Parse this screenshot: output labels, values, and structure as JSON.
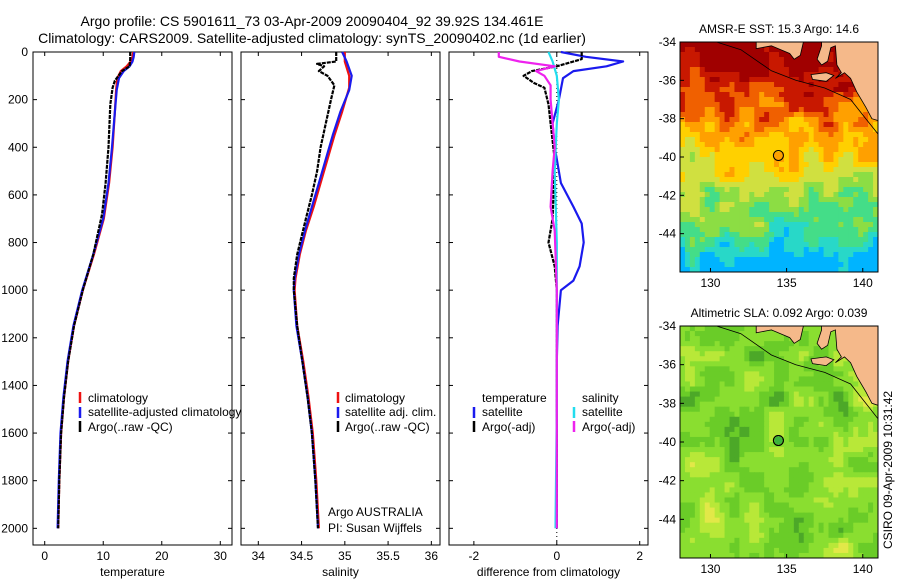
{
  "figure": {
    "title_line1": "Argo profile: CS 5901611_73 03-Apr-2009 20090404_92 39.92S 134.461E",
    "title_line2": "Climatology: CARS2009. Satellite-adjusted climatology: synTS_20090402.nc (1d earlier)",
    "credit": "CSIRO 09-Apr-2009 10:31:42"
  },
  "colors": {
    "climatology": "#ee1111",
    "satellite": "#1a1aee",
    "argo": "#000000",
    "salinity_satellite": "#22ddee",
    "salinity_argo": "#ee22ee",
    "land": "#f5b98a"
  },
  "chart_data": [
    {
      "id": "temperature",
      "type": "line",
      "xlabel": "temperature",
      "ylabel": "",
      "xlim": [
        -2,
        32
      ],
      "ylim": [
        2070,
        0
      ],
      "xticks": [
        0,
        10,
        20,
        30
      ],
      "yticks": [
        0,
        200,
        400,
        600,
        800,
        1000,
        1200,
        1400,
        1600,
        1800,
        2000
      ],
      "legend": [
        "climatology",
        "satellite-adjusted climatology",
        "Argo(..raw -QC)"
      ],
      "series": [
        {
          "name": "climatology",
          "color_key": "climatology",
          "points": [
            [
              15.1,
              0
            ],
            [
              15.0,
              20
            ],
            [
              14.7,
              40
            ],
            [
              14.0,
              60
            ],
            [
              13.0,
              80
            ],
            [
              12.4,
              110
            ],
            [
              12.2,
              160
            ],
            [
              12.0,
              250
            ],
            [
              11.6,
              400
            ],
            [
              11.0,
              550
            ],
            [
              10.1,
              700
            ],
            [
              8.4,
              850
            ],
            [
              6.5,
              1000
            ],
            [
              5.0,
              1150
            ],
            [
              4.0,
              1300
            ],
            [
              3.3,
              1450
            ],
            [
              2.8,
              1600
            ],
            [
              2.5,
              1800
            ],
            [
              2.3,
              2000
            ]
          ]
        },
        {
          "name": "satellite-adjusted climatology",
          "color_key": "satellite",
          "points": [
            [
              15.3,
              0
            ],
            [
              15.2,
              20
            ],
            [
              15.0,
              40
            ],
            [
              14.5,
              60
            ],
            [
              13.5,
              80
            ],
            [
              12.7,
              110
            ],
            [
              12.3,
              160
            ],
            [
              12.0,
              250
            ],
            [
              11.5,
              400
            ],
            [
              10.9,
              550
            ],
            [
              10.0,
              700
            ],
            [
              8.3,
              850
            ],
            [
              6.4,
              1000
            ],
            [
              4.9,
              1150
            ],
            [
              3.9,
              1300
            ],
            [
              3.2,
              1450
            ],
            [
              2.7,
              1600
            ],
            [
              2.4,
              1800
            ],
            [
              2.2,
              2000
            ]
          ]
        },
        {
          "name": "Argo(..raw -QC)",
          "color_key": "argo",
          "points": [
            [
              14.6,
              0
            ],
            [
              14.6,
              30
            ],
            [
              14.5,
              60
            ],
            [
              13.2,
              80
            ],
            [
              12.6,
              100
            ],
            [
              12.0,
              120
            ],
            [
              11.6,
              150
            ],
            [
              11.2,
              220
            ],
            [
              10.9,
              400
            ],
            [
              10.4,
              550
            ],
            [
              9.8,
              680
            ],
            [
              8.3,
              850
            ],
            [
              6.5,
              1000
            ],
            [
              5.0,
              1150
            ],
            [
              4.0,
              1300
            ],
            [
              3.3,
              1450
            ],
            [
              2.8,
              1600
            ],
            [
              2.5,
              1800
            ],
            [
              2.3,
              2000
            ]
          ]
        }
      ]
    },
    {
      "id": "salinity",
      "type": "line",
      "xlabel": "salinity",
      "ylabel": "",
      "xlim": [
        33.8,
        36.1
      ],
      "ylim": [
        2070,
        0
      ],
      "xticks": [
        34,
        34.5,
        35,
        35.5,
        36
      ],
      "legend": [
        "climatology",
        "satellite adj. clim.",
        "Argo(..raw -QC)"
      ],
      "annotation_lines": [
        "Argo AUSTRALIA",
        "PI: Susan Wijffels"
      ],
      "series": [
        {
          "name": "climatology",
          "color_key": "climatology",
          "points": [
            [
              35.0,
              0
            ],
            [
              35.0,
              40
            ],
            [
              35.05,
              100
            ],
            [
              35.05,
              150
            ],
            [
              34.97,
              250
            ],
            [
              34.88,
              350
            ],
            [
              34.8,
              450
            ],
            [
              34.72,
              550
            ],
            [
              34.64,
              650
            ],
            [
              34.55,
              750
            ],
            [
              34.48,
              850
            ],
            [
              34.43,
              950
            ],
            [
              34.42,
              1000
            ],
            [
              34.45,
              1150
            ],
            [
              34.52,
              1300
            ],
            [
              34.58,
              1450
            ],
            [
              34.63,
              1600
            ],
            [
              34.67,
              1800
            ],
            [
              34.7,
              2000
            ]
          ]
        },
        {
          "name": "satellite adj. clim.",
          "color_key": "satellite",
          "points": [
            [
              34.97,
              0
            ],
            [
              35.02,
              40
            ],
            [
              35.08,
              100
            ],
            [
              35.05,
              160
            ],
            [
              34.95,
              250
            ],
            [
              34.86,
              350
            ],
            [
              34.78,
              450
            ],
            [
              34.7,
              550
            ],
            [
              34.62,
              650
            ],
            [
              34.54,
              750
            ],
            [
              34.47,
              850
            ],
            [
              34.42,
              950
            ],
            [
              34.41,
              1000
            ],
            [
              34.44,
              1150
            ],
            [
              34.51,
              1300
            ],
            [
              34.57,
              1450
            ],
            [
              34.62,
              1600
            ],
            [
              34.66,
              1800
            ],
            [
              34.69,
              2000
            ]
          ]
        },
        {
          "name": "Argo(..raw -QC)",
          "color_key": "argo",
          "points": [
            [
              34.9,
              0
            ],
            [
              34.9,
              40
            ],
            [
              34.68,
              50
            ],
            [
              34.76,
              60
            ],
            [
              34.7,
              80
            ],
            [
              34.8,
              100
            ],
            [
              34.88,
              140
            ],
            [
              34.84,
              200
            ],
            [
              34.78,
              300
            ],
            [
              34.72,
              400
            ],
            [
              34.68,
              500
            ],
            [
              34.62,
              600
            ],
            [
              34.55,
              700
            ],
            [
              34.45,
              850
            ],
            [
              34.41,
              950
            ],
            [
              34.41,
              1000
            ],
            [
              34.45,
              1150
            ],
            [
              34.51,
              1300
            ],
            [
              34.57,
              1450
            ],
            [
              34.62,
              1600
            ],
            [
              34.66,
              1800
            ],
            [
              34.69,
              2000
            ]
          ]
        }
      ]
    },
    {
      "id": "difference",
      "type": "line",
      "xlabel": "difference from climatology",
      "ylabel": "",
      "xlim": [
        -2.6,
        2.2
      ],
      "ylim": [
        2070,
        0
      ],
      "xticks": [
        -2,
        0,
        2
      ],
      "legend_headers": [
        "temperature",
        "salinity"
      ],
      "legend": [
        "satellite",
        "Argo(-adj)",
        "satellite",
        "Argo(-adj)"
      ],
      "series": [
        {
          "name": "temperature satellite",
          "color_key": "satellite",
          "points": [
            [
              0.1,
              0
            ],
            [
              0.7,
              20
            ],
            [
              1.6,
              40
            ],
            [
              1.2,
              60
            ],
            [
              0.4,
              80
            ],
            [
              0.15,
              110
            ],
            [
              0.05,
              200
            ],
            [
              -0.1,
              300
            ],
            [
              -0.05,
              400
            ],
            [
              0.0,
              450
            ],
            [
              0.1,
              550
            ],
            [
              0.4,
              650
            ],
            [
              0.6,
              720
            ],
            [
              0.65,
              800
            ],
            [
              0.55,
              900
            ],
            [
              0.4,
              960
            ],
            [
              0.1,
              1000
            ],
            [
              0.02,
              1150
            ],
            [
              0.0,
              1300
            ],
            [
              0.0,
              2000
            ]
          ]
        },
        {
          "name": "temperature Argo(-adj)",
          "color_key": "argo",
          "points": [
            [
              0.6,
              0
            ],
            [
              0.6,
              30
            ],
            [
              0.0,
              60
            ],
            [
              -0.6,
              80
            ],
            [
              -0.8,
              100
            ],
            [
              -0.55,
              130
            ],
            [
              -0.3,
              150
            ],
            [
              -0.2,
              220
            ],
            [
              -0.15,
              300
            ],
            [
              -0.05,
              450
            ],
            [
              -0.1,
              700
            ],
            [
              -0.2,
              800
            ],
            [
              -0.05,
              900
            ],
            [
              0.0,
              1000
            ],
            [
              0.0,
              2000
            ]
          ]
        },
        {
          "name": "salinity satellite",
          "color_key": "salinity_satellite",
          "points": [
            [
              -0.2,
              0
            ],
            [
              -0.1,
              40
            ],
            [
              0.0,
              100
            ],
            [
              0.05,
              200
            ],
            [
              0.0,
              300
            ],
            [
              -0.05,
              500
            ],
            [
              0.0,
              800
            ],
            [
              0.0,
              1000
            ],
            [
              0.0,
              1500
            ],
            [
              -0.03,
              2000
            ]
          ]
        },
        {
          "name": "salinity Argo(-adj)",
          "color_key": "salinity_argo",
          "points": [
            [
              -1.4,
              0
            ],
            [
              -1.4,
              20
            ],
            [
              -0.9,
              40
            ],
            [
              -0.05,
              60
            ],
            [
              -0.5,
              80
            ],
            [
              -0.3,
              100
            ],
            [
              -0.15,
              140
            ],
            [
              -0.15,
              200
            ],
            [
              -0.1,
              300
            ],
            [
              -0.05,
              400
            ],
            [
              -0.1,
              500
            ],
            [
              -0.15,
              650
            ],
            [
              -0.05,
              750
            ],
            [
              0.0,
              1000
            ],
            [
              0.0,
              2000
            ]
          ]
        }
      ]
    },
    {
      "id": "sst-map",
      "type": "heatmap",
      "title": "AMSR-E SST: 15.3 Argo: 14.6",
      "xlim": [
        128,
        141
      ],
      "ylim": [
        -46,
        -34
      ],
      "xticks": [
        130,
        135,
        140
      ],
      "yticks": [
        -34,
        -36,
        -38,
        -40,
        -42,
        -44
      ],
      "marker": {
        "lon": 134.461,
        "lat": -39.92
      },
      "colorscale": [
        "#00b4ff",
        "#28d8c8",
        "#44dd88",
        "#8cdd44",
        "#d0e040",
        "#ffd000",
        "#ffa000",
        "#f06000",
        "#c81800",
        "#a00000"
      ]
    },
    {
      "id": "sla-map",
      "type": "heatmap",
      "title": "Altimetric SLA: 0.092 Argo: 0.039",
      "xlim": [
        128,
        141
      ],
      "ylim": [
        -46,
        -34
      ],
      "xticks": [
        130,
        135,
        140
      ],
      "yticks": [
        -34,
        -36,
        -38,
        -40,
        -42,
        -44
      ],
      "marker": {
        "lon": 134.461,
        "lat": -39.92
      },
      "colorscale": [
        "#4ca828",
        "#6acc28",
        "#8ade30",
        "#b8e838",
        "#e2e848"
      ]
    }
  ]
}
